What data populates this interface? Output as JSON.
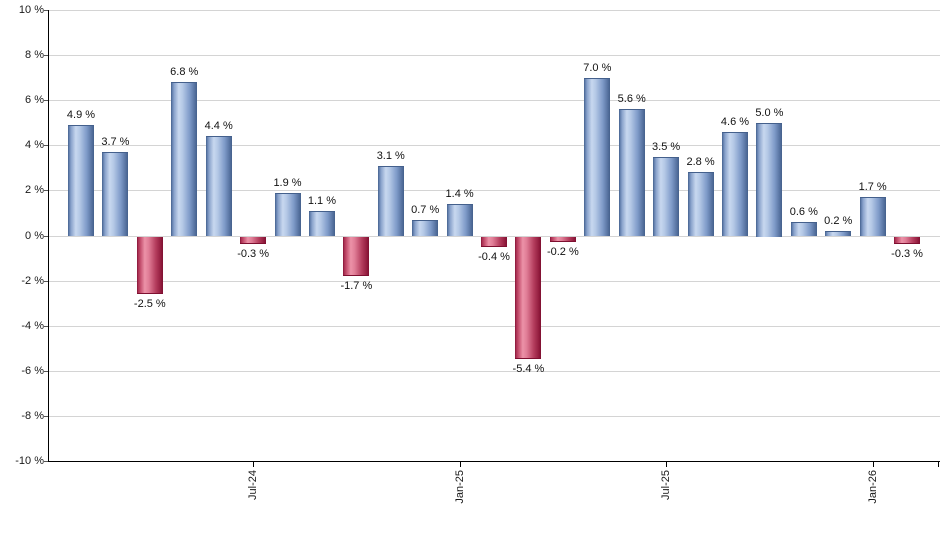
{
  "chart_data": {
    "type": "bar",
    "title": "",
    "xlabel": "",
    "ylabel": "",
    "unit": "%",
    "ylim": [
      -10,
      10
    ],
    "grid": "horizontal",
    "legend": "none",
    "y_ticks": [
      {
        "value": 10,
        "label": "10 %"
      },
      {
        "value": 8,
        "label": "8 %"
      },
      {
        "value": 6,
        "label": "6 %"
      },
      {
        "value": 4,
        "label": "4 %"
      },
      {
        "value": 2,
        "label": "2 %"
      },
      {
        "value": 0,
        "label": "0 %"
      },
      {
        "value": -2,
        "label": "-2 %"
      },
      {
        "value": -4,
        "label": "-4 %"
      },
      {
        "value": -6,
        "label": "-6 %"
      },
      {
        "value": -8,
        "label": "-8 %"
      },
      {
        "value": -10,
        "label": "-10 %"
      }
    ],
    "x_ticks": [
      {
        "bar_index": 5,
        "label": "Jul-24"
      },
      {
        "bar_index": 11,
        "label": "Jan-25"
      },
      {
        "bar_index": 17,
        "label": "Jul-25"
      },
      {
        "bar_index": 23,
        "label": "Jan-26"
      }
    ],
    "bars": [
      {
        "value": 4.9,
        "label": "4.9 %"
      },
      {
        "value": 3.7,
        "label": "3.7 %"
      },
      {
        "value": -2.5,
        "label": "-2.5 %"
      },
      {
        "value": 6.8,
        "label": "6.8 %"
      },
      {
        "value": 4.4,
        "label": "4.4 %"
      },
      {
        "value": -0.3,
        "label": "-0.3 %"
      },
      {
        "value": 1.9,
        "label": "1.9 %"
      },
      {
        "value": 1.1,
        "label": "1.1 %"
      },
      {
        "value": -1.7,
        "label": "-1.7 %"
      },
      {
        "value": 3.1,
        "label": "3.1 %"
      },
      {
        "value": 0.7,
        "label": "0.7 %"
      },
      {
        "value": 1.4,
        "label": "1.4 %"
      },
      {
        "value": -0.4,
        "label": "-0.4 %"
      },
      {
        "value": -5.4,
        "label": "-5.4 %"
      },
      {
        "value": -0.2,
        "label": "-0.2 %"
      },
      {
        "value": 7.0,
        "label": "7.0 %"
      },
      {
        "value": 5.6,
        "label": "5.6 %"
      },
      {
        "value": 3.5,
        "label": "3.5 %"
      },
      {
        "value": 2.8,
        "label": "2.8 %"
      },
      {
        "value": 4.6,
        "label": "4.6 %"
      },
      {
        "value": 5.0,
        "label": "5.0 %"
      },
      {
        "value": 0.6,
        "label": "0.6 %"
      },
      {
        "value": 0.2,
        "label": "0.2 %"
      },
      {
        "value": 1.7,
        "label": "1.7 %"
      },
      {
        "value": -0.3,
        "label": "-0.3 %"
      }
    ],
    "colors": {
      "positive_bar_main": "#7e9ac8",
      "positive_bar_highlight": "#c8d8ef",
      "positive_bar_edge": "#44608c",
      "negative_bar_main": "#b53e5e",
      "negative_bar_highlight": "#ec92a8",
      "negative_bar_edge": "#7e0f30",
      "gridline": "#d4d4d4",
      "axis": "#000000",
      "text": "#1a1a1a"
    }
  }
}
